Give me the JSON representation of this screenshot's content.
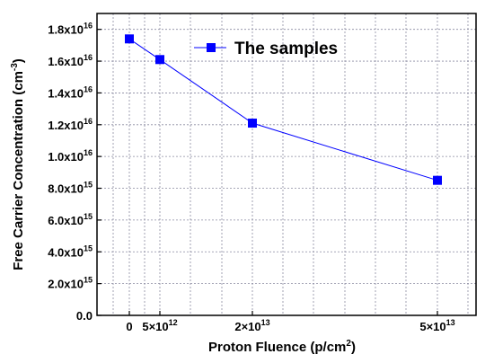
{
  "chart_data": {
    "type": "line",
    "x": [
      0,
      5000000000000.0,
      20000000000000.0,
      50000000000000.0
    ],
    "x_tick_labels": [
      {
        "value": 0,
        "base": "0",
        "exp": ""
      },
      {
        "value": 5000000000000.0,
        "base": "5×10",
        "exp": "12"
      },
      {
        "value": 20000000000000.0,
        "base": "2×10",
        "exp": "13"
      },
      {
        "value": 50000000000000.0,
        "base": "5×10",
        "exp": "13"
      }
    ],
    "y_tick_labels": [
      {
        "value": 0,
        "base": "0.0",
        "exp": ""
      },
      {
        "value": 2000000000000000.0,
        "base": "2.0x10",
        "exp": "15"
      },
      {
        "value": 4000000000000000.0,
        "base": "4.0x10",
        "exp": "15"
      },
      {
        "value": 6000000000000000.0,
        "base": "6.0x10",
        "exp": "15"
      },
      {
        "value": 8000000000000000.0,
        "base": "8.0x10",
        "exp": "15"
      },
      {
        "value": 1e+16,
        "base": "1.0x10",
        "exp": "16"
      },
      {
        "value": 1.2e+16,
        "base": "1.2x10",
        "exp": "16"
      },
      {
        "value": 1.4e+16,
        "base": "1.4x10",
        "exp": "16"
      },
      {
        "value": 1.6e+16,
        "base": "1.6x10",
        "exp": "16"
      },
      {
        "value": 1.8e+16,
        "base": "1.8x10",
        "exp": "16"
      }
    ],
    "series": [
      {
        "name": "The samples",
        "color": "#0000ff",
        "marker": "square",
        "values": [
          1.74e+16,
          1.61e+16,
          1.21e+16,
          8500000000000000.0
        ]
      }
    ],
    "xlabel": "Proton Fluence (p/cm",
    "xlabel_exp": "2",
    "xlabel_suffix": ")",
    "ylabel": "Free Carrier Concentration (cm",
    "ylabel_exp": "-3",
    "ylabel_suffix": ")",
    "ylim": [
      0,
      1.9e+16
    ],
    "grid": true,
    "legend_placement": "top-right"
  }
}
